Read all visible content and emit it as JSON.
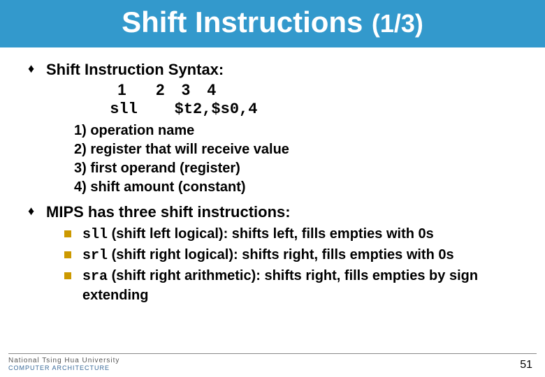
{
  "header": {
    "title": "Shift Instructions",
    "part": "(1/3)",
    "bg_color": "#3399cc",
    "text_color": "#ffffff"
  },
  "bullets": [
    {
      "text": "Shift Instruction Syntax:",
      "syntax_nums": "  1       2    3    4",
      "syntax_code": " sll    $t2,$s0,4",
      "explain": [
        "1) operation name",
        "2) register that will receive value",
        "3) first operand (register)",
        "4) shift amount (constant)"
      ]
    },
    {
      "text": "MIPS has three shift instructions:",
      "subs": [
        {
          "code": "sll",
          "rest": " (shift left logical): shifts left, fills empties with 0s"
        },
        {
          "code": "srl",
          "rest": " (shift right logical): shifts right, fills empties with 0s"
        },
        {
          "code": "sra",
          "rest": " (shift right arithmetic): shifts right, fills empties by sign extending"
        }
      ]
    }
  ],
  "footer": {
    "org": "National Tsing Hua University",
    "dept": "COMPUTER  ARCHITECTURE",
    "page": "51"
  },
  "disc_color": "#cc9900"
}
